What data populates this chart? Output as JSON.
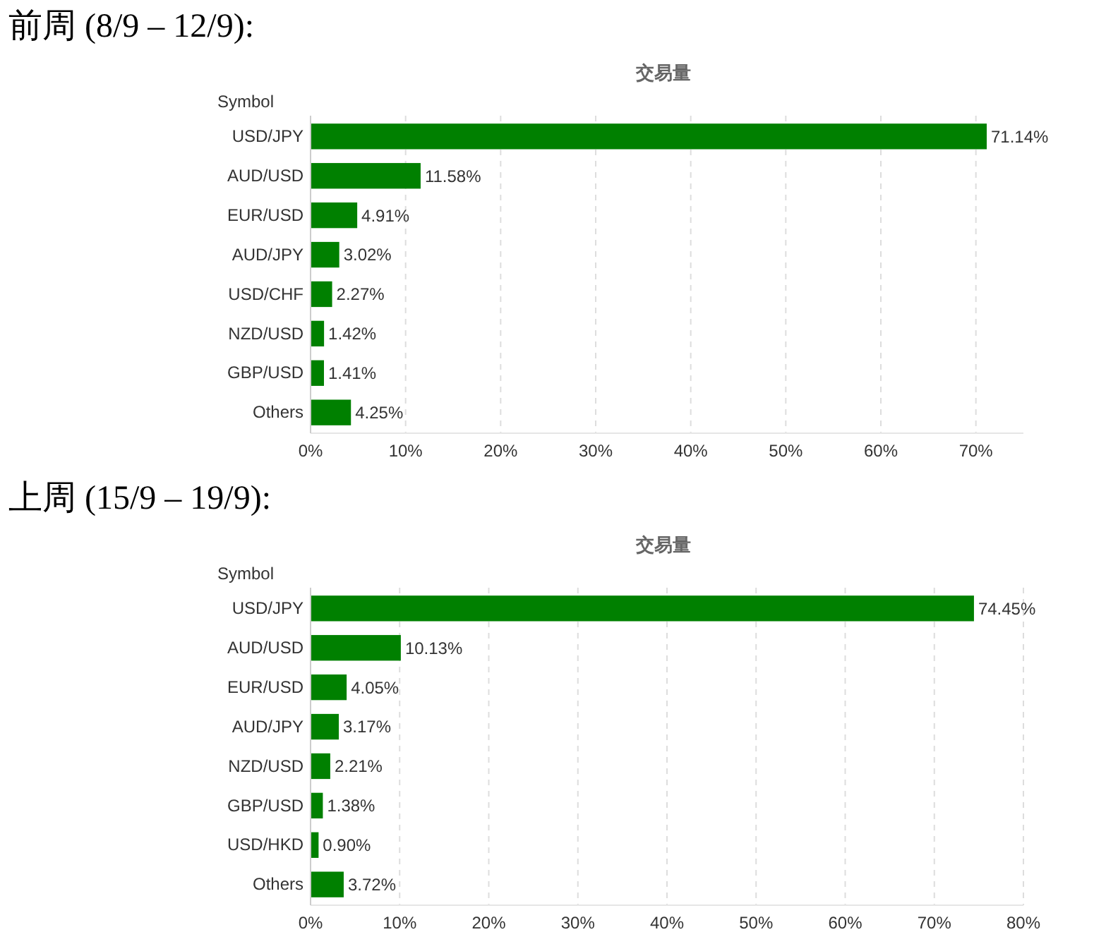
{
  "chart_data": [
    {
      "type": "bar",
      "orientation": "horizontal",
      "title": "前周 (8/9 – 12/9):",
      "subtitle": "交易量",
      "ylabel": "Symbol",
      "categories": [
        "USD/JPY",
        "AUD/USD",
        "EUR/USD",
        "AUD/JPY",
        "USD/CHF",
        "NZD/USD",
        "GBP/USD",
        "Others"
      ],
      "values": [
        71.14,
        11.58,
        4.91,
        3.02,
        2.27,
        1.42,
        1.41,
        4.25
      ],
      "value_labels": [
        "71.14%",
        "11.58%",
        "4.91%",
        "3.02%",
        "2.27%",
        "1.42%",
        "1.41%",
        "4.25%"
      ],
      "color": "#008000",
      "xlim": [
        0,
        75
      ],
      "xticks": [
        {
          "value": 0,
          "label": "0%"
        },
        {
          "value": 10,
          "label": "10%"
        },
        {
          "value": 20,
          "label": "20%"
        },
        {
          "value": 30,
          "label": "30%"
        },
        {
          "value": 40,
          "label": "40%"
        },
        {
          "value": 50,
          "label": "50%"
        },
        {
          "value": 60,
          "label": "60%"
        },
        {
          "value": 70,
          "label": "70%"
        }
      ],
      "grid": "x"
    },
    {
      "type": "bar",
      "orientation": "horizontal",
      "title": "上周 (15/9 – 19/9):",
      "subtitle": "交易量",
      "ylabel": "Symbol",
      "categories": [
        "USD/JPY",
        "AUD/USD",
        "EUR/USD",
        "AUD/JPY",
        "NZD/USD",
        "GBP/USD",
        "USD/HKD",
        "Others"
      ],
      "values": [
        74.45,
        10.13,
        4.05,
        3.17,
        2.21,
        1.38,
        0.9,
        3.72
      ],
      "value_labels": [
        "74.45%",
        "10.13%",
        "4.05%",
        "3.17%",
        "2.21%",
        "1.38%",
        "0.90%",
        "3.72%"
      ],
      "color": "#008000",
      "xlim": [
        0,
        80
      ],
      "xticks": [
        {
          "value": 0,
          "label": "0%"
        },
        {
          "value": 10,
          "label": "10%"
        },
        {
          "value": 20,
          "label": "20%"
        },
        {
          "value": 30,
          "label": "30%"
        },
        {
          "value": 40,
          "label": "40%"
        },
        {
          "value": 50,
          "label": "50%"
        },
        {
          "value": 60,
          "label": "60%"
        },
        {
          "value": 70,
          "label": "70%"
        },
        {
          "value": 80,
          "label": "80%"
        }
      ],
      "grid": "x"
    }
  ]
}
